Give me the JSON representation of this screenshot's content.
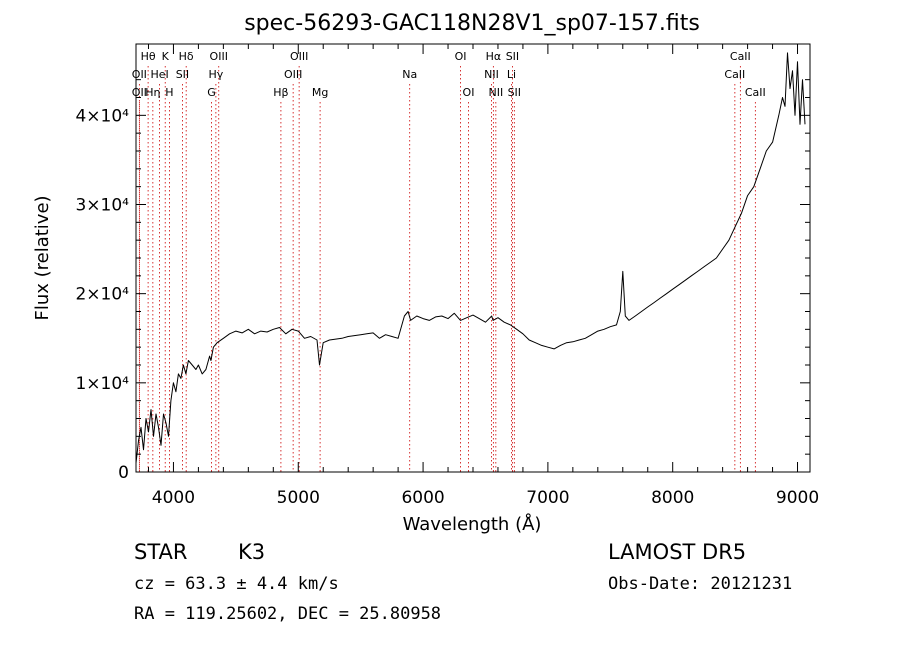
{
  "chart_data": {
    "type": "line",
    "title": "spec-56293-GAC118N28V1_sp07-157.fits",
    "xlabel": "Wavelength (Å)",
    "ylabel": "Flux (relative)",
    "xlim": [
      3700,
      9100
    ],
    "ylim": [
      0,
      48000
    ],
    "x_ticks": [
      4000,
      5000,
      6000,
      7000,
      8000,
      9000
    ],
    "y_ticks": [
      {
        "value": 0,
        "label": "0"
      },
      {
        "value": 10000,
        "label": "1×10⁴"
      },
      {
        "value": 20000,
        "label": "2×10⁴"
      },
      {
        "value": 30000,
        "label": "3×10⁴"
      },
      {
        "value": 40000,
        "label": "4×10⁴"
      }
    ],
    "grid": false,
    "line_color": "#000000",
    "marker_color": "#cc0000",
    "series": [
      {
        "x": [
          3700,
          3720,
          3740,
          3760,
          3780,
          3800,
          3820,
          3840,
          3860,
          3880,
          3900,
          3920,
          3940,
          3960,
          3980,
          4000,
          4020,
          4040,
          4060,
          4080,
          4100,
          4120,
          4150,
          4180,
          4200,
          4230,
          4260,
          4290,
          4300,
          4320,
          4350,
          4400,
          4450,
          4500,
          4550,
          4600,
          4650,
          4700,
          4750,
          4800,
          4850,
          4900,
          4950,
          5000,
          5050,
          5100,
          5150,
          5170,
          5200,
          5250,
          5300,
          5350,
          5400,
          5450,
          5500,
          5550,
          5600,
          5650,
          5700,
          5750,
          5800,
          5850,
          5880,
          5900,
          5950,
          6000,
          6050,
          6100,
          6150,
          6200,
          6250,
          6300,
          6350,
          6400,
          6450,
          6500,
          6550,
          6560,
          6600,
          6650,
          6700,
          6750,
          6800,
          6850,
          6900,
          6950,
          7000,
          7050,
          7100,
          7150,
          7200,
          7250,
          7300,
          7350,
          7400,
          7450,
          7500,
          7550,
          7580,
          7600,
          7620,
          7650,
          7700,
          7750,
          7800,
          7850,
          7900,
          7950,
          8000,
          8050,
          8100,
          8150,
          8200,
          8250,
          8300,
          8350,
          8400,
          8450,
          8500,
          8550,
          8600,
          8650,
          8700,
          8750,
          8800,
          8850,
          8880,
          8900,
          8920,
          8940,
          8960,
          8980,
          9000,
          9020,
          9040,
          9060
        ],
        "y": [
          1000,
          3500,
          5000,
          2500,
          6000,
          4500,
          7000,
          4000,
          6500,
          5000,
          3000,
          6500,
          5500,
          4000,
          8000,
          10000,
          9000,
          11000,
          10500,
          12000,
          11000,
          12500,
          12000,
          11500,
          12000,
          11000,
          11500,
          13000,
          12500,
          14000,
          14500,
          15000,
          15500,
          15800,
          15600,
          16000,
          15500,
          15800,
          15700,
          16000,
          16200,
          15500,
          16000,
          15800,
          15000,
          15200,
          14800,
          12000,
          14500,
          14800,
          14900,
          15000,
          15200,
          15300,
          15400,
          15500,
          15600,
          15000,
          15400,
          15200,
          15000,
          17500,
          18000,
          17000,
          17500,
          17200,
          17000,
          17400,
          17500,
          17200,
          17800,
          17000,
          17300,
          17600,
          17200,
          16800,
          17500,
          17000,
          17300,
          16800,
          16500,
          16000,
          15500,
          14800,
          14500,
          14200,
          14000,
          13800,
          14200,
          14500,
          14600,
          14800,
          15000,
          15400,
          15800,
          16000,
          16300,
          16500,
          18000,
          22500,
          17500,
          17000,
          17500,
          18000,
          18500,
          19000,
          19500,
          20000,
          20500,
          21000,
          21500,
          22000,
          22500,
          23000,
          23500,
          24000,
          25000,
          26000,
          27500,
          29000,
          31000,
          32000,
          34000,
          36000,
          37000,
          40000,
          42000,
          41000,
          47000,
          43000,
          45000,
          40000,
          46000,
          39000,
          44000,
          39000
        ]
      }
    ],
    "line_markers": [
      {
        "label": "Hθ",
        "wavelength": 3797,
        "row": 1
      },
      {
        "label": "K",
        "wavelength": 3934,
        "row": 1
      },
      {
        "label": "Hδ",
        "wavelength": 4102,
        "row": 1
      },
      {
        "label": "OIII",
        "wavelength": 4363,
        "row": 1
      },
      {
        "label": "OIII",
        "wavelength": 5007,
        "row": 1
      },
      {
        "label": "OI",
        "wavelength": 6300,
        "row": 1
      },
      {
        "label": "Hα",
        "wavelength": 6563,
        "row": 1
      },
      {
        "label": "SII",
        "wavelength": 6716,
        "row": 1
      },
      {
        "label": "CaII",
        "wavelength": 8542,
        "row": 1
      },
      {
        "label": "OII",
        "wavelength": 3727,
        "row": 2
      },
      {
        "label": "HeI",
        "wavelength": 3889,
        "row": 2
      },
      {
        "label": "SII",
        "wavelength": 4072,
        "row": 2
      },
      {
        "label": "Hγ",
        "wavelength": 4340,
        "row": 2
      },
      {
        "label": "OIII",
        "wavelength": 4959,
        "row": 2
      },
      {
        "label": "Na",
        "wavelength": 5893,
        "row": 2
      },
      {
        "label": "NII",
        "wavelength": 6548,
        "row": 2
      },
      {
        "label": "Li",
        "wavelength": 6708,
        "row": 2
      },
      {
        "label": "CaII",
        "wavelength": 8498,
        "row": 2
      },
      {
        "label": "OII",
        "wavelength": 3727,
        "row": 3
      },
      {
        "label": "Hη",
        "wavelength": 3835,
        "row": 3
      },
      {
        "label": "H",
        "wavelength": 3968,
        "row": 3
      },
      {
        "label": "G",
        "wavelength": 4305,
        "row": 3
      },
      {
        "label": "Hβ",
        "wavelength": 4861,
        "row": 3
      },
      {
        "label": "Mg",
        "wavelength": 5175,
        "row": 3
      },
      {
        "label": "OI",
        "wavelength": 6364,
        "row": 3
      },
      {
        "label": "NII",
        "wavelength": 6583,
        "row": 3
      },
      {
        "label": "SII",
        "wavelength": 6731,
        "row": 3
      },
      {
        "label": "CaII",
        "wavelength": 8662,
        "row": 3
      }
    ]
  },
  "info": {
    "class": "STAR",
    "subclass": "K3",
    "survey": "LAMOST DR5",
    "cz": "cz = 63.3 ± 4.4 km/s",
    "obs_date": "Obs-Date: 20121231",
    "coords": "RA = 119.25602, DEC =  25.80958"
  }
}
